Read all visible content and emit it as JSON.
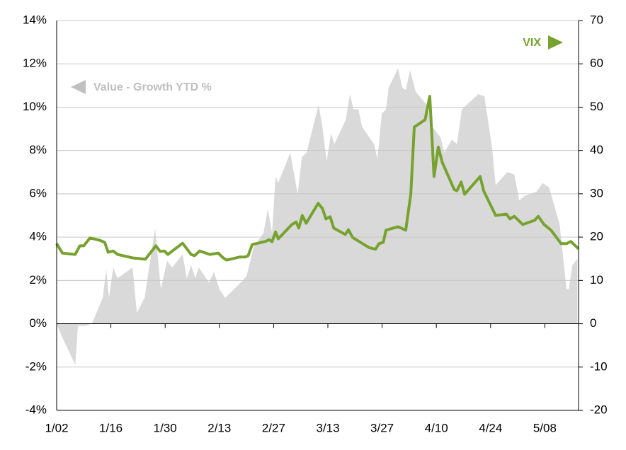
{
  "chart_data": {
    "type": "combo",
    "xlim": [
      0,
      134.7
    ],
    "xticks": [
      {
        "value": 0,
        "label": "1/02"
      },
      {
        "value": 14,
        "label": "1/16"
      },
      {
        "value": 28,
        "label": "1/30"
      },
      {
        "value": 42,
        "label": "2/13"
      },
      {
        "value": 56,
        "label": "2/27"
      },
      {
        "value": 70,
        "label": "3/13"
      },
      {
        "value": 84,
        "label": "3/27"
      },
      {
        "value": 98,
        "label": "4/10"
      },
      {
        "value": 112,
        "label": "4/24"
      },
      {
        "value": 126,
        "label": "5/08"
      }
    ],
    "ylim": [
      -4,
      14
    ],
    "yticks": [
      {
        "value": -4,
        "label": "-4%"
      },
      {
        "value": -2,
        "label": "-2%"
      },
      {
        "value": 0,
        "label": "0%"
      },
      {
        "value": 2,
        "label": "2%"
      },
      {
        "value": 4,
        "label": "4%"
      },
      {
        "value": 6,
        "label": "6%"
      },
      {
        "value": 8,
        "label": "8%"
      },
      {
        "value": 10,
        "label": "10%"
      },
      {
        "value": 12,
        "label": "12%"
      },
      {
        "value": 14,
        "label": "14%"
      }
    ],
    "y2lim": [
      -20,
      70
    ],
    "y2ticks": [
      -20,
      -10,
      0,
      10,
      20,
      30,
      40,
      50,
      60,
      70
    ],
    "grid": true,
    "series": [
      {
        "name": "Value - Growth YTD %",
        "type": "area",
        "color": "#d9d9d9",
        "legend_color": "#bfbfbf",
        "x": [
          0,
          1.5,
          2.7,
          4.8,
          5.5,
          7.3,
          9.1,
          11.9,
          12.8,
          13.5,
          14.6,
          15.7,
          19.6,
          20.7,
          22.7,
          25.4,
          26.9,
          28.5,
          29.8,
          32.5,
          33.6,
          34.7,
          35.8,
          36.7,
          39.3,
          40.6,
          42,
          43.5,
          47.5,
          49,
          50.8,
          53.4,
          54.5,
          55.6,
          56.5,
          57.2,
          60.3,
          62.2,
          63.3,
          64.5,
          67.6,
          68.5,
          69.7,
          70.8,
          71.7,
          74.6,
          75.7,
          76.6,
          77.9,
          78.8,
          81.9,
          82.8,
          83.9,
          85,
          85.7,
          88.1,
          89.2,
          90.1,
          91.2,
          92.7,
          95.6,
          96.9,
          99.1,
          100,
          102,
          103.3,
          104.6,
          108.8,
          110.4,
          112.4,
          113.3,
          116.3,
          118.1,
          119.4,
          120.7,
          123.9,
          125.4,
          127.1,
          129.8,
          131.6,
          132.2,
          133.1,
          134.4
        ],
        "values": [
          0,
          -0.65,
          -1.1,
          -1.9,
          -0.1,
          -0.1,
          0,
          1.2,
          2.5,
          1.2,
          2.6,
          2.1,
          2.6,
          0.5,
          1.2,
          4.4,
          1.6,
          2.9,
          2.6,
          3.2,
          2.1,
          2.7,
          2.1,
          2.6,
          1.9,
          2.4,
          1.6,
          1.2,
          1.9,
          2.2,
          3.5,
          4.2,
          5.3,
          4.2,
          6.8,
          6.5,
          7.9,
          6.0,
          7.7,
          7.9,
          10.1,
          9.2,
          7.5,
          8.8,
          8.3,
          9.4,
          10.6,
          9.9,
          9.9,
          9.1,
          8.3,
          7.6,
          9.7,
          9.9,
          10.9,
          11.8,
          10.9,
          10.8,
          11.7,
          10.7,
          10.1,
          9.1,
          8.6,
          7.9,
          8.5,
          8.3,
          9.9,
          10.6,
          10.5,
          8.1,
          6.4,
          7.0,
          6.9,
          5.7,
          5.9,
          6.1,
          6.5,
          6.3,
          4.6,
          1.6,
          1.6,
          2.7,
          3.0
        ]
      },
      {
        "name": "VIX",
        "type": "line",
        "axis": "y2",
        "color": "#77a22f",
        "x": [
          0,
          1.5,
          4.8,
          6,
          7,
          8.6,
          11,
          12.4,
          13.3,
          14.6,
          15.7,
          19.6,
          22.9,
          25.6,
          26.7,
          27.8,
          28.7,
          32.5,
          34.7,
          35.6,
          36.9,
          39.5,
          41.7,
          43,
          43.9,
          47.2,
          48.6,
          49.4,
          50.5,
          53.9,
          54.8,
          55.6,
          56.5,
          57.2,
          60.7,
          61.8,
          62.5,
          63.4,
          64.4,
          67.5,
          68.6,
          69.5,
          70.6,
          71.5,
          74.5,
          75.3,
          76.4,
          80.6,
          82.3,
          83.2,
          84.3,
          85,
          88.1,
          90.1,
          91.4,
          92.3,
          95.1,
          96.3,
          97.4,
          98.5,
          99.5,
          102.6,
          103.3,
          104.4,
          105.3,
          109.3,
          110.2,
          113.3,
          116.1,
          117,
          118.1,
          120.3,
          123.4,
          124.3,
          125.8,
          127.6,
          130.2,
          131.6,
          132.7,
          134.7
        ],
        "values": [
          18.5,
          16.3,
          16.0,
          18.0,
          18.0,
          19.8,
          19.3,
          18.8,
          16.5,
          16.8,
          16.0,
          15.2,
          14.9,
          18.0,
          16.7,
          16.8,
          16.0,
          18.6,
          16.0,
          15.7,
          16.8,
          16.0,
          16.3,
          15.2,
          14.7,
          15.4,
          15.4,
          15.7,
          18.3,
          19.0,
          19.4,
          18.95,
          21.2,
          19.6,
          22.9,
          23.5,
          22.1,
          25.0,
          23.2,
          27.8,
          26.6,
          24.2,
          24.7,
          22.1,
          20.6,
          21.7,
          19.9,
          17.6,
          17.2,
          18.5,
          18.8,
          21.6,
          22.4,
          21.6,
          29.9,
          45.4,
          47.1,
          52.5,
          34.0,
          40.8,
          37.3,
          31.0,
          30.7,
          32.7,
          29.9,
          34.0,
          30.7,
          25.0,
          25.3,
          24.2,
          24.8,
          22.9,
          23.9,
          24.8,
          22.9,
          21.6,
          18.5,
          18.5,
          19.0,
          17.3
        ]
      }
    ]
  }
}
